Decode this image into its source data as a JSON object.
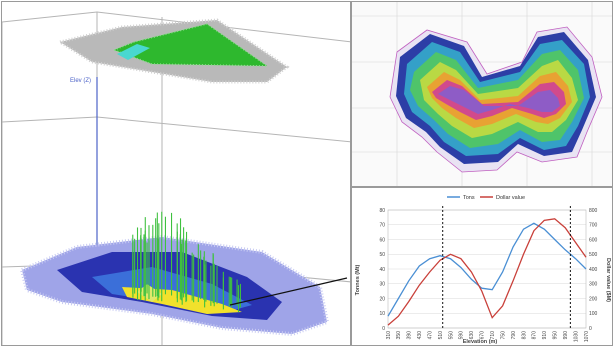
{
  "view3d": {
    "axis_label": "Elev (Z)"
  },
  "chart_data": {
    "type": "line",
    "title": "",
    "xlabel": "Elevation (m)",
    "ylabel": "Tonnes (Mt)",
    "y2label": "Dollar value ($M)",
    "legend_position": "top",
    "grid": true,
    "x": [
      310,
      350,
      390,
      430,
      470,
      510,
      550,
      590,
      630,
      670,
      710,
      750,
      790,
      830,
      870,
      910,
      950,
      990,
      1030,
      1070
    ],
    "x_tick_labels": [
      "310",
      "350",
      "390",
      "430",
      "470",
      "510",
      "550",
      "590",
      "630",
      "670",
      "710",
      "750",
      "790",
      "830",
      "870",
      "910",
      "950",
      "990",
      "1030",
      "1070"
    ],
    "ylim": [
      0,
      80
    ],
    "y_ticks": [
      0,
      10,
      20,
      30,
      40,
      50,
      60,
      70,
      80
    ],
    "y2lim": [
      0,
      800
    ],
    "y2_ticks": [
      0,
      100,
      200,
      300,
      400,
      500,
      600,
      700,
      800
    ],
    "series": [
      {
        "name": "Tons",
        "axis": "left",
        "color": "#4a8fd4",
        "values": [
          8,
          20,
          32,
          42,
          47,
          49,
          47,
          41,
          33,
          27,
          26,
          38,
          55,
          67,
          71,
          67,
          60,
          53,
          47,
          40
        ]
      },
      {
        "name": "Dollar value",
        "axis": "right",
        "color": "#c9403a",
        "values": [
          20,
          80,
          180,
          290,
          380,
          460,
          500,
          470,
          380,
          250,
          70,
          150,
          320,
          500,
          660,
          730,
          740,
          680,
          580,
          480
        ]
      }
    ],
    "markers_x": [
      520,
      1010
    ]
  },
  "colors": {
    "tons": "#4a8fd4",
    "dollar": "#c9403a",
    "grid": "#d9d9d9"
  }
}
